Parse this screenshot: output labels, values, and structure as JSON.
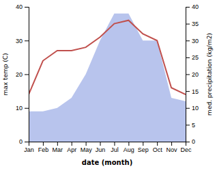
{
  "chart_data": {
    "type": "line",
    "categories": [
      "Jan",
      "Feb",
      "Mar",
      "Apr",
      "May",
      "Jun",
      "Jul",
      "Aug",
      "Sep",
      "Oct",
      "Nov",
      "Dec"
    ],
    "xlabel": "date (month)",
    "ylabel": "max temp (C)",
    "y2label": "med. precipitation (kg/m2)",
    "series": [
      {
        "type": "area",
        "axis": "y2",
        "color": "#b8c4ed",
        "values": [
          9,
          9,
          10,
          13,
          20,
          30,
          38,
          38,
          30,
          30,
          13,
          12
        ]
      },
      {
        "type": "line",
        "color": "#c0504d",
        "values": [
          14,
          24,
          27,
          27,
          28,
          31,
          35,
          36,
          32,
          30,
          16,
          14
        ]
      }
    ],
    "ylim": [
      0,
      40
    ],
    "yticks": [
      0,
      10,
      20,
      30,
      40
    ],
    "y2lim": [
      0,
      40
    ],
    "y2ticks": [
      0,
      5,
      10,
      15,
      20,
      25,
      30,
      35,
      40
    ],
    "grid": false
  }
}
